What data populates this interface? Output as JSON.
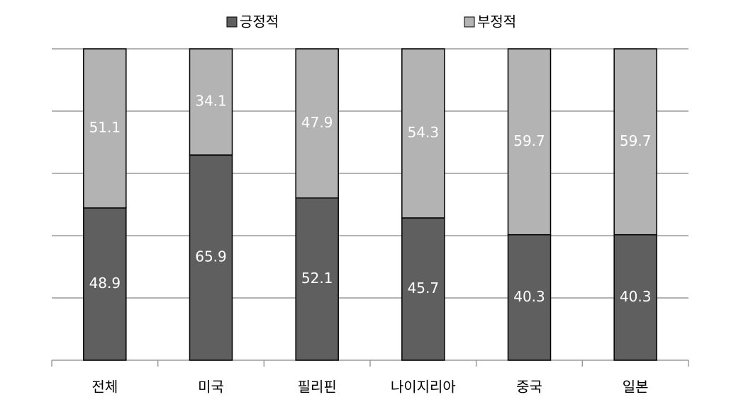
{
  "chart_data": {
    "type": "stacked_bar",
    "categories": [
      "전체",
      "미국",
      "필리핀",
      "나이지리아",
      "중국",
      "일본"
    ],
    "series": [
      {
        "name": "긍정적",
        "color": "#5f5f5f",
        "values": [
          48.9,
          65.9,
          52.1,
          45.7,
          40.3,
          40.3
        ]
      },
      {
        "name": "부정적",
        "color": "#b3b3b3",
        "values": [
          51.1,
          34.1,
          47.9,
          54.3,
          59.7,
          59.7
        ]
      }
    ],
    "ylim": [
      0,
      100
    ],
    "yticks": [
      0,
      20,
      40,
      60,
      80,
      100
    ],
    "ytick_labels": false,
    "grid": true,
    "legend": "top",
    "value_label_color": "#ffffff"
  }
}
